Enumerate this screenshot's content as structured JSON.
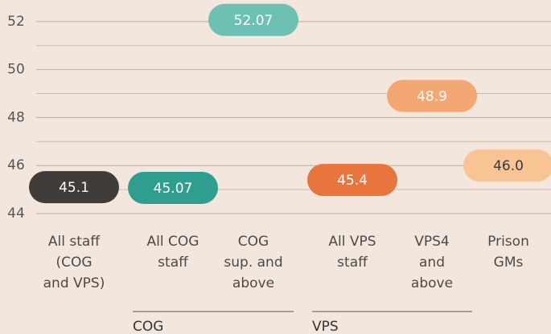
{
  "chart_data": {
    "type": "pill",
    "categories": [
      [
        "All staff",
        "(COG",
        "and VPS)"
      ],
      [
        "All COG",
        "staff"
      ],
      [
        "COG",
        "sup. and",
        "above"
      ],
      [
        "All VPS",
        "staff"
      ],
      [
        "VPS4",
        "and",
        "above"
      ],
      [
        "Prison",
        "GMs"
      ]
    ],
    "values": [
      45.1,
      45.07,
      52.07,
      45.4,
      48.9,
      46.0
    ],
    "value_labels": [
      "45.1",
      "45.07",
      "52.07",
      "45.4",
      "48.9",
      "46.0"
    ],
    "colors": [
      "#3f3c3a",
      "#2f9e91",
      "#6cc1b3",
      "#e8753c",
      "#f3a774",
      "#f9c493"
    ],
    "label_colors": [
      "#ffffff",
      "#ffffff",
      "#ffffff",
      "#ffffff",
      "#ffffff",
      "#3a3a3a"
    ],
    "ylim": [
      43.53,
      52.9
    ],
    "yticks": [
      44,
      46,
      48,
      50,
      52
    ],
    "minor_yticks": [
      45,
      47,
      49,
      51
    ],
    "grid": true,
    "groups": [
      {
        "name": "COG",
        "span": [
          1,
          2
        ]
      },
      {
        "name": "VPS",
        "span": [
          3,
          4
        ]
      }
    ]
  }
}
